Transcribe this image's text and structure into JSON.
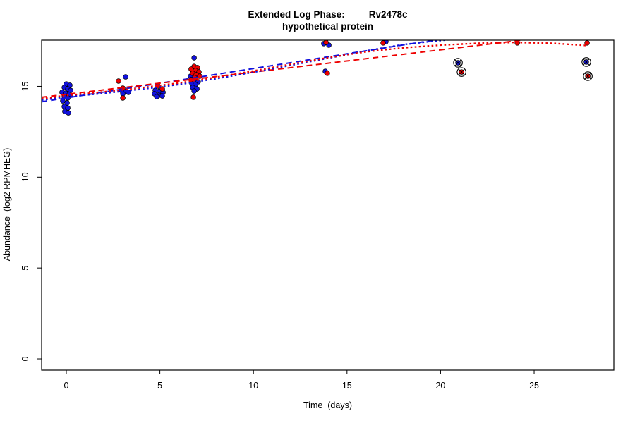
{
  "chart_data": {
    "type": "scatter",
    "title_main": "Extended Log Phase:",
    "title_gene": "Rv2478c",
    "subtitle": "hypothetical protein",
    "xlabel": "Time  (days)",
    "ylabel": "Abundance  (log2 RPMHEG)",
    "xlim": [
      -1.32,
      29.26
    ],
    "ylim": [
      -0.62,
      17.54
    ],
    "x_ticks": [
      0,
      5,
      10,
      15,
      20,
      25
    ],
    "y_ticks": [
      0,
      5,
      10,
      15
    ],
    "grid": false,
    "legend": "none",
    "colors": {
      "blue_series": "#1111dd",
      "red_series": "#ee0000",
      "outlier_ring": "#000000",
      "box": "#000000"
    },
    "series": [
      {
        "name": "blue-points",
        "color": "#1111dd",
        "points": [
          [
            0.0,
            15.13
          ],
          [
            0.19,
            15.06
          ],
          [
            -0.11,
            14.94
          ],
          [
            0.08,
            14.86
          ],
          [
            0.23,
            14.78
          ],
          [
            -0.23,
            14.67
          ],
          [
            -0.04,
            14.63
          ],
          [
            0.15,
            14.55
          ],
          [
            -0.11,
            14.43
          ],
          [
            0.08,
            14.36
          ],
          [
            -0.19,
            14.2
          ],
          [
            0.04,
            14.09
          ],
          [
            -0.11,
            13.89
          ],
          [
            0.08,
            13.81
          ],
          [
            -0.08,
            13.62
          ],
          [
            0.11,
            13.54
          ],
          [
            3.17,
            15.52
          ],
          [
            2.94,
            14.78
          ],
          [
            3.13,
            14.71
          ],
          [
            3.32,
            14.67
          ],
          [
            3.02,
            14.59
          ],
          [
            4.75,
            14.78
          ],
          [
            4.98,
            14.74
          ],
          [
            5.17,
            14.67
          ],
          [
            4.71,
            14.59
          ],
          [
            4.94,
            14.51
          ],
          [
            5.13,
            14.47
          ],
          [
            4.83,
            14.43
          ],
          [
            6.83,
            16.57
          ],
          [
            6.79,
            15.83
          ],
          [
            7.01,
            15.68
          ],
          [
            6.64,
            15.56
          ],
          [
            6.86,
            15.33
          ],
          [
            7.05,
            15.25
          ],
          [
            6.71,
            15.17
          ],
          [
            6.9,
            15.1
          ],
          [
            6.75,
            14.94
          ],
          [
            6.98,
            14.86
          ],
          [
            6.83,
            14.74
          ],
          [
            13.76,
            17.35
          ],
          [
            14.03,
            17.27
          ],
          [
            13.84,
            15.83
          ],
          [
            17.08,
            17.46
          ],
          [
            20.93,
            16.3
          ],
          [
            27.79,
            16.34
          ]
        ]
      },
      {
        "name": "red-points",
        "color": "#ee0000",
        "points": [
          [
            2.79,
            15.29
          ],
          [
            3.02,
            14.9
          ],
          [
            3.02,
            14.36
          ],
          [
            4.9,
            15.02
          ],
          [
            5.13,
            14.86
          ],
          [
            6.83,
            16.1
          ],
          [
            7.01,
            16.03
          ],
          [
            6.67,
            15.95
          ],
          [
            6.9,
            15.87
          ],
          [
            7.09,
            15.79
          ],
          [
            6.75,
            15.72
          ],
          [
            6.94,
            15.64
          ],
          [
            7.13,
            15.56
          ],
          [
            6.86,
            15.48
          ],
          [
            6.67,
            15.37
          ],
          [
            6.79,
            14.4
          ],
          [
            13.88,
            17.42
          ],
          [
            13.95,
            15.72
          ],
          [
            16.93,
            17.39
          ],
          [
            21.12,
            15.79
          ],
          [
            24.1,
            17.39
          ],
          [
            27.83,
            17.39
          ],
          [
            27.87,
            15.56
          ]
        ]
      }
    ],
    "marked_outliers": [
      {
        "x": 20.93,
        "y": 16.3
      },
      {
        "x": 21.12,
        "y": 15.79
      },
      {
        "x": 27.79,
        "y": 16.34
      },
      {
        "x": 27.87,
        "y": 15.56
      }
    ],
    "lines": [
      {
        "name": "blue-linear-fit",
        "color": "#1111dd",
        "style": "dashed",
        "points": [
          [
            -1.32,
            14.15
          ],
          [
            29.26,
            19.1
          ]
        ]
      },
      {
        "name": "red-linear-fit",
        "color": "#ee0000",
        "style": "dashed",
        "points": [
          [
            -1.32,
            14.4
          ],
          [
            29.26,
            18.14
          ]
        ]
      },
      {
        "name": "blue-smooth-fit",
        "color": "#1111dd",
        "style": "dotted",
        "points": [
          [
            -1.32,
            14.24
          ],
          [
            0,
            14.42
          ],
          [
            2,
            14.62
          ],
          [
            4,
            14.84
          ],
          [
            6,
            15.1
          ],
          [
            8,
            15.42
          ],
          [
            10,
            15.78
          ],
          [
            12,
            16.16
          ],
          [
            14,
            16.55
          ],
          [
            16,
            16.95
          ],
          [
            18,
            17.3
          ],
          [
            19.5,
            17.47
          ],
          [
            21,
            17.62
          ]
        ]
      },
      {
        "name": "red-smooth-fit",
        "color": "#ee0000",
        "style": "dotted",
        "points": [
          [
            -1.32,
            14.32
          ],
          [
            0,
            14.5
          ],
          [
            2,
            14.7
          ],
          [
            4,
            14.92
          ],
          [
            6,
            15.18
          ],
          [
            8,
            15.5
          ],
          [
            10,
            15.85
          ],
          [
            12,
            16.22
          ],
          [
            14,
            16.58
          ],
          [
            16,
            16.9
          ],
          [
            18,
            17.12
          ],
          [
            20,
            17.27
          ],
          [
            22,
            17.37
          ],
          [
            24,
            17.42
          ],
          [
            26,
            17.37
          ],
          [
            27.9,
            17.24
          ]
        ]
      }
    ]
  }
}
